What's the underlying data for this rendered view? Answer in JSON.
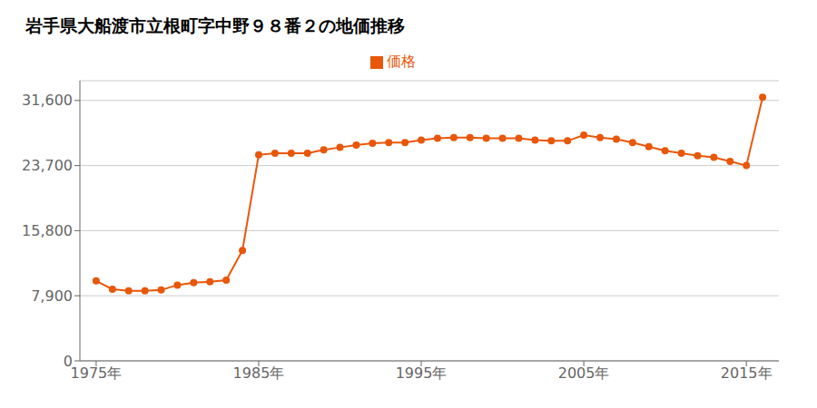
{
  "chart_data": {
    "type": "line",
    "title": "岩手県大船渡市立根町字中野９８番２の地価推移",
    "x": [
      1975,
      1976,
      1977,
      1978,
      1979,
      1980,
      1981,
      1982,
      1983,
      1984,
      1985,
      1986,
      1987,
      1988,
      1989,
      1990,
      1991,
      1992,
      1993,
      1994,
      1995,
      1996,
      1997,
      1998,
      1999,
      2000,
      2001,
      2002,
      2003,
      2004,
      2005,
      2006,
      2007,
      2008,
      2009,
      2010,
      2011,
      2012,
      2013,
      2014,
      2015,
      2016
    ],
    "series": [
      {
        "name": "価格",
        "color": "#e8570a",
        "marker": "circle",
        "line_style": "solid",
        "values": [
          9700,
          8700,
          8500,
          8500,
          8600,
          9200,
          9500,
          9600,
          9800,
          13400,
          25000,
          25200,
          25200,
          25200,
          25600,
          25900,
          26200,
          26400,
          26500,
          26500,
          26800,
          27000,
          27100,
          27100,
          27000,
          27000,
          27000,
          26800,
          26700,
          26700,
          27400,
          27100,
          26900,
          26500,
          26000,
          25500,
          25200,
          24900,
          24700,
          24200,
          23700,
          32000
        ]
      }
    ],
    "xlim": [
      1974,
      2017
    ],
    "xticks": [
      {
        "value": 1975,
        "label": "1975年"
      },
      {
        "value": 1985,
        "label": "1985年"
      },
      {
        "value": 1995,
        "label": "1995年"
      },
      {
        "value": 2005,
        "label": "2005年"
      },
      {
        "value": 2015,
        "label": "2015年"
      }
    ],
    "ylim": [
      0,
      34000
    ],
    "yticks": [
      0,
      {
        "value": 7900,
        "label": "7,900"
      },
      {
        "value": 15800,
        "label": "15,800"
      },
      {
        "value": 23700,
        "label": "23,700"
      },
      {
        "value": 31600,
        "label": "31,600"
      }
    ],
    "grid": true,
    "legend": "top"
  }
}
